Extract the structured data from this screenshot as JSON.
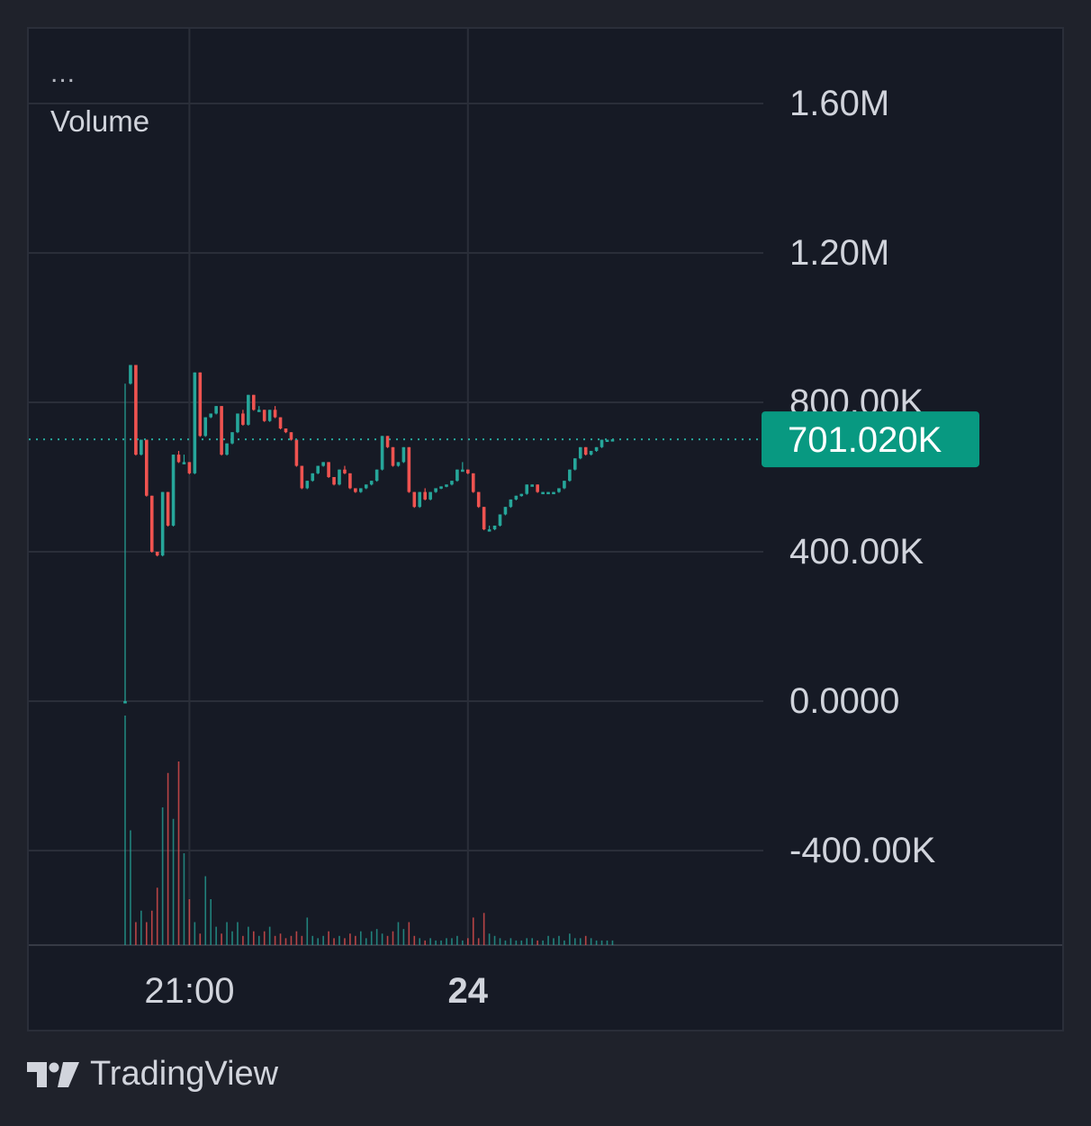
{
  "header": {
    "menu_dots": "...",
    "indicator": "Volume"
  },
  "brand": {
    "logo_icon": "tradingview-logo-icon",
    "name": "TradingView"
  },
  "colors": {
    "background": "#161a25",
    "grid": "#2a2e39",
    "axis_text": "#d1d4dc",
    "up": "#26a69a",
    "down": "#ef5350",
    "last_price_badge": "#089981"
  },
  "chart_data": {
    "type": "candlestick",
    "y_ticks": [
      {
        "value": 1600000,
        "label": "1.60M"
      },
      {
        "value": 1200000,
        "label": "1.20M"
      },
      {
        "value": 800000,
        "label": "800.00K"
      },
      {
        "value": 400000,
        "label": "400.00K"
      },
      {
        "value": 0,
        "label": "0.0000"
      },
      {
        "value": -400000,
        "label": "-400.00K"
      }
    ],
    "x_ticks": [
      {
        "label": "21:00",
        "index": 12,
        "bold": false
      },
      {
        "label": "24",
        "index": 64,
        "bold": true
      }
    ],
    "ylim": [
      -660000,
      1810000
    ],
    "last_price": {
      "value": 701020,
      "label": "701.020K"
    },
    "candles": [
      [
        0,
        0,
        850000
      ],
      [
        850000,
        900000,
        900000
      ],
      [
        900000,
        660000,
        660000
      ],
      [
        660000,
        700000,
        700000
      ],
      [
        700000,
        550000,
        550000
      ],
      [
        550000,
        400000,
        400000
      ],
      [
        400000,
        390000,
        400000
      ],
      [
        390000,
        560000,
        560000
      ],
      [
        560000,
        470000,
        560000
      ],
      [
        470000,
        660000,
        660000
      ],
      [
        660000,
        640000,
        670000
      ],
      [
        640000,
        640000,
        660000
      ],
      [
        640000,
        610000,
        640000
      ],
      [
        610000,
        880000,
        880000
      ],
      [
        880000,
        710000,
        880000
      ],
      [
        710000,
        760000,
        760000
      ],
      [
        760000,
        770000,
        770000
      ],
      [
        770000,
        790000,
        790000
      ],
      [
        790000,
        660000,
        790000
      ],
      [
        660000,
        690000,
        690000
      ],
      [
        690000,
        720000,
        720000
      ],
      [
        720000,
        770000,
        770000
      ],
      [
        770000,
        740000,
        780000
      ],
      [
        740000,
        820000,
        820000
      ],
      [
        820000,
        780000,
        820000
      ],
      [
        780000,
        780000,
        790000
      ],
      [
        780000,
        750000,
        780000
      ],
      [
        750000,
        780000,
        780000
      ],
      [
        780000,
        760000,
        790000
      ],
      [
        760000,
        730000,
        760000
      ],
      [
        730000,
        720000,
        730000
      ],
      [
        720000,
        700000,
        720000
      ],
      [
        700000,
        630000,
        700000
      ],
      [
        630000,
        570000,
        630000
      ],
      [
        570000,
        590000,
        590000
      ],
      [
        590000,
        610000,
        610000
      ],
      [
        610000,
        630000,
        630000
      ],
      [
        630000,
        640000,
        640000
      ],
      [
        640000,
        600000,
        640000
      ],
      [
        600000,
        580000,
        600000
      ],
      [
        580000,
        620000,
        620000
      ],
      [
        620000,
        610000,
        630000
      ],
      [
        610000,
        570000,
        610000
      ],
      [
        570000,
        560000,
        570000
      ],
      [
        560000,
        570000,
        570000
      ],
      [
        570000,
        580000,
        580000
      ],
      [
        580000,
        590000,
        590000
      ],
      [
        590000,
        620000,
        620000
      ],
      [
        620000,
        710000,
        710000
      ],
      [
        710000,
        680000,
        710000
      ],
      [
        680000,
        630000,
        680000
      ],
      [
        630000,
        640000,
        640000
      ],
      [
        640000,
        680000,
        680000
      ],
      [
        680000,
        560000,
        680000
      ],
      [
        560000,
        520000,
        560000
      ],
      [
        520000,
        560000,
        560000
      ],
      [
        560000,
        540000,
        570000
      ],
      [
        540000,
        560000,
        560000
      ],
      [
        560000,
        570000,
        570000
      ],
      [
        570000,
        575000,
        575000
      ],
      [
        575000,
        580000,
        580000
      ],
      [
        580000,
        590000,
        590000
      ],
      [
        590000,
        620000,
        620000
      ],
      [
        620000,
        620000,
        640000
      ],
      [
        620000,
        610000,
        620000
      ],
      [
        610000,
        560000,
        610000
      ],
      [
        560000,
        520000,
        560000
      ],
      [
        520000,
        460000,
        520000
      ],
      [
        460000,
        460000,
        470000
      ],
      [
        460000,
        470000,
        470000
      ],
      [
        470000,
        500000,
        500000
      ],
      [
        500000,
        520000,
        520000
      ],
      [
        520000,
        540000,
        540000
      ],
      [
        540000,
        550000,
        550000
      ],
      [
        550000,
        555000,
        555000
      ],
      [
        555000,
        580000,
        580000
      ],
      [
        580000,
        580000,
        580000
      ],
      [
        580000,
        560000,
        580000
      ],
      [
        560000,
        560000,
        560000
      ],
      [
        560000,
        560000,
        560000
      ],
      [
        560000,
        560000,
        560000
      ],
      [
        560000,
        570000,
        570000
      ],
      [
        570000,
        590000,
        590000
      ],
      [
        590000,
        620000,
        620000
      ],
      [
        620000,
        650000,
        650000
      ],
      [
        650000,
        680000,
        680000
      ],
      [
        680000,
        660000,
        680000
      ],
      [
        660000,
        670000,
        670000
      ],
      [
        670000,
        680000,
        680000
      ],
      [
        680000,
        700000,
        700000
      ],
      [
        700000,
        700000,
        700000
      ],
      [
        700000,
        701020,
        701020
      ]
    ],
    "volume_relative": [
      1.0,
      0.5,
      0.1,
      0.15,
      0.1,
      0.15,
      0.25,
      0.6,
      0.75,
      0.55,
      0.8,
      0.4,
      0.2,
      0.1,
      0.05,
      0.3,
      0.2,
      0.08,
      0.05,
      0.1,
      0.06,
      0.1,
      0.04,
      0.08,
      0.06,
      0.04,
      0.06,
      0.08,
      0.04,
      0.05,
      0.03,
      0.04,
      0.06,
      0.04,
      0.12,
      0.04,
      0.03,
      0.04,
      0.06,
      0.03,
      0.04,
      0.03,
      0.05,
      0.04,
      0.06,
      0.03,
      0.06,
      0.07,
      0.05,
      0.04,
      0.06,
      0.1,
      0.07,
      0.1,
      0.04,
      0.03,
      0.02,
      0.03,
      0.02,
      0.02,
      0.03,
      0.03,
      0.04,
      0.02,
      0.03,
      0.12,
      0.03,
      0.14,
      0.05,
      0.04,
      0.03,
      0.02,
      0.03,
      0.02,
      0.02,
      0.03,
      0.03,
      0.02,
      0.02,
      0.04,
      0.03,
      0.04,
      0.02,
      0.05,
      0.03,
      0.03,
      0.04,
      0.03,
      0.02,
      0.02,
      0.02,
      0.02
    ]
  }
}
